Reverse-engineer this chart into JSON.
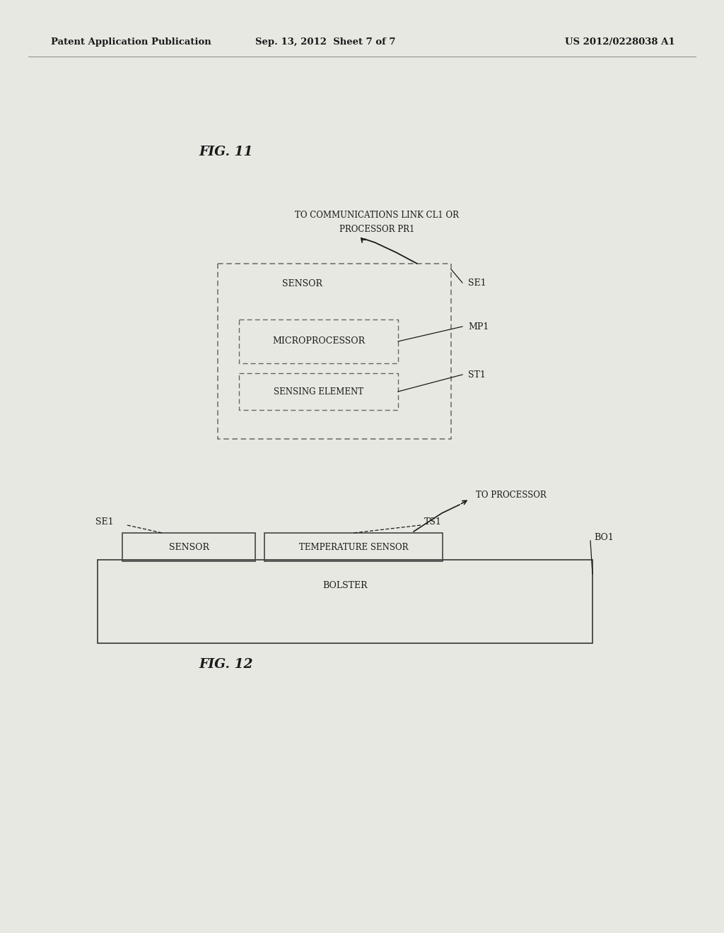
{
  "bg": "#e8e8e3",
  "header_left": "Patent Application Publication",
  "header_center": "Sep. 13, 2012  Sheet 7 of 7",
  "header_right": "US 2012/0228038 A1",
  "fig11_label": "FIG. 11",
  "fig12_label": "FIG. 12",
  "dk": "#1a1a1a",
  "gr": "#555555",
  "comm_text_line1": "TO COMMUNICATIONS LINK CL1 OR",
  "comm_text_line2": "PROCESSOR PR1",
  "to_proc_text": "TO PROCESSOR"
}
